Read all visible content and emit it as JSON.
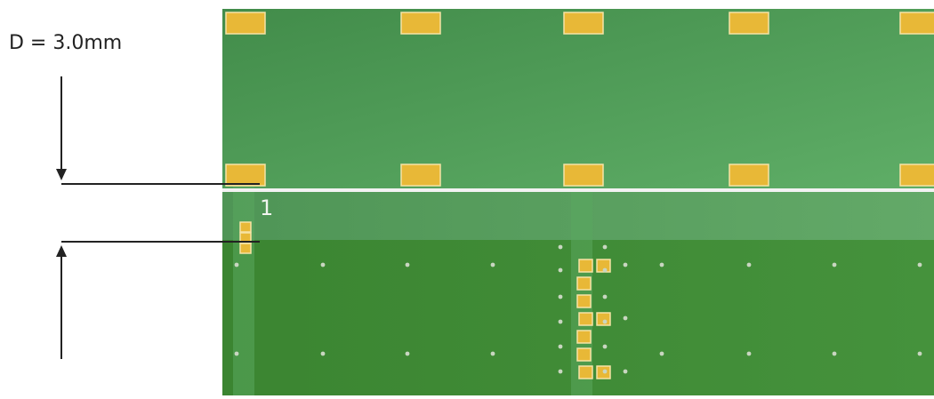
{
  "dimension": {
    "label": "D = 3.0mm"
  },
  "pin_label": "1",
  "colors": {
    "board_top": "#4c9a55",
    "board_bottom": "#3f8a36",
    "pad": "#e8b837",
    "pad_border": "#f6e3a6",
    "cut_line": "#f2f2f2",
    "via": "#c9d6c1",
    "dimension_line": "#222222"
  }
}
